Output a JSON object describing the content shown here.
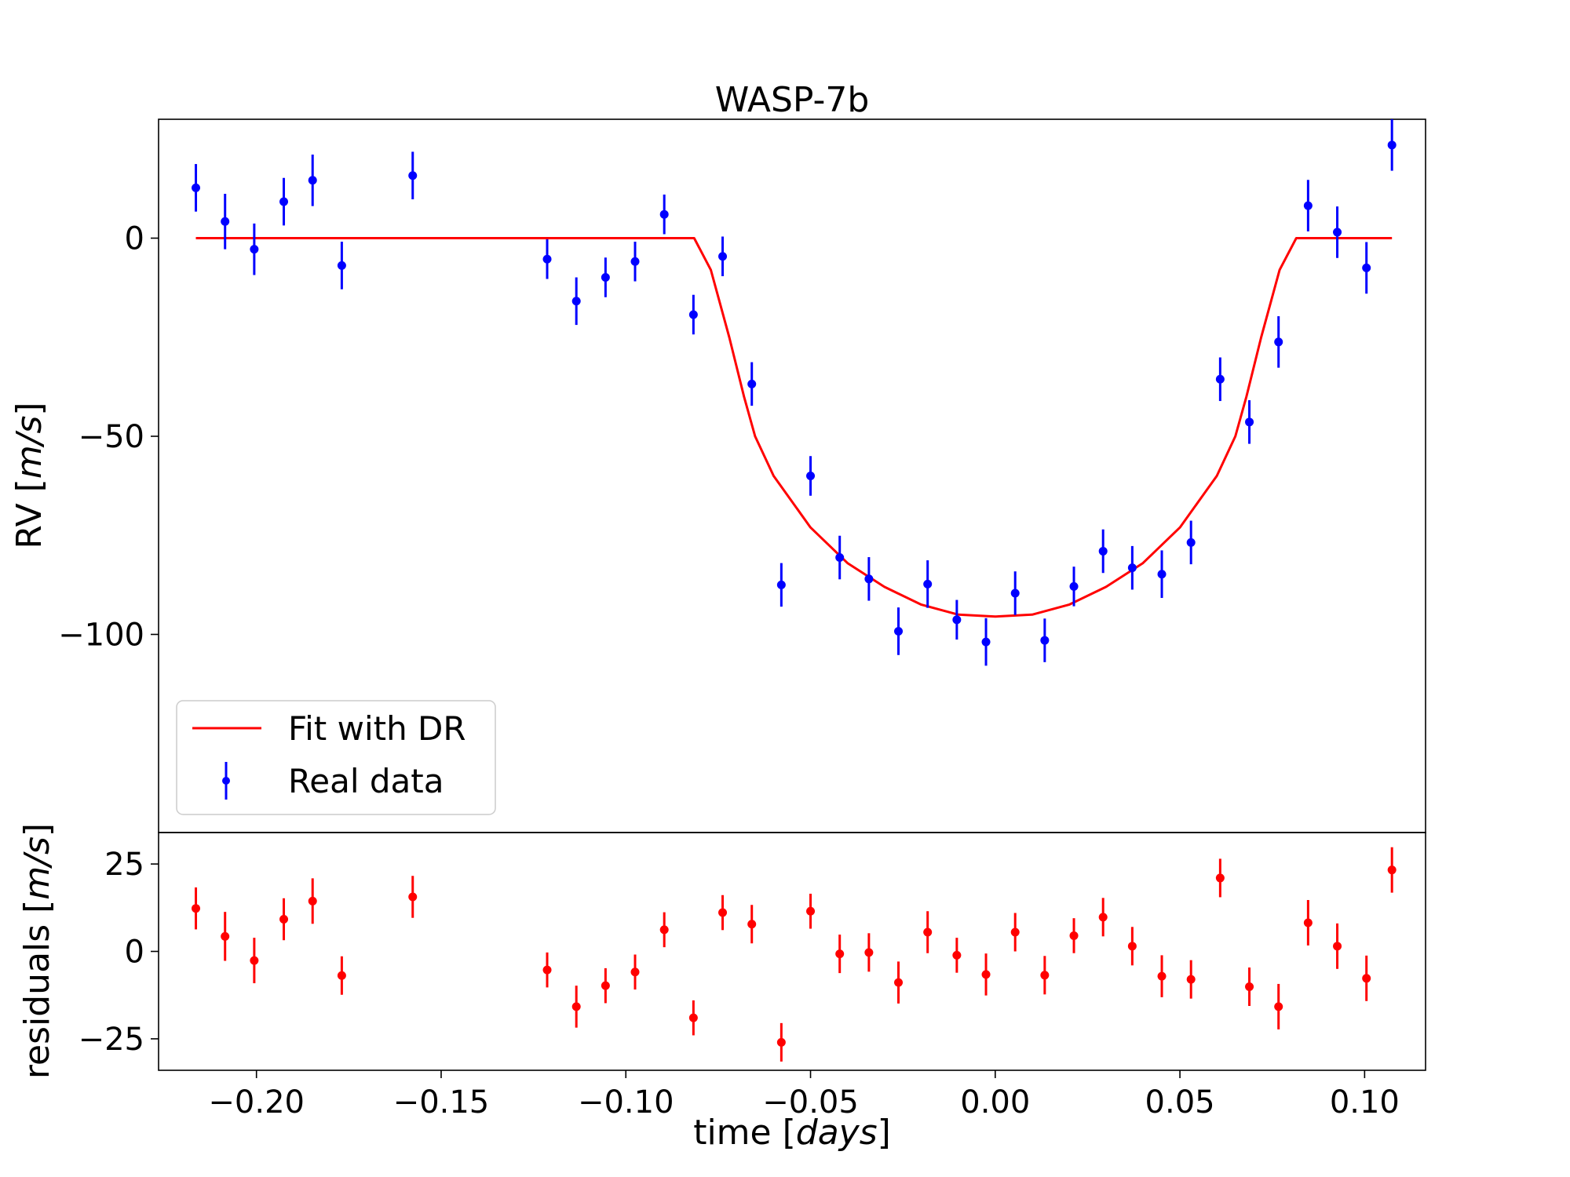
{
  "chart_data": {
    "type": "scatter",
    "title": "WASP-7b",
    "colors": {
      "fit": "#ff0000",
      "data": "#0000ff",
      "residuals": "#ff0000"
    },
    "top_panel": {
      "ylabel_text": "RV [",
      "ylabel_unit": "m/s",
      "ylabel_end": "]",
      "ylim": [
        -150,
        30
      ],
      "yticks": [
        0,
        -50,
        -100
      ],
      "ytick_labels": [
        "0",
        "−50",
        "−100"
      ],
      "legend": {
        "location": "lower-left",
        "fit_label": "Fit with DR",
        "data_label": "Real data"
      },
      "series": [
        {
          "name": "Fit with DR",
          "style": "line",
          "x": [
            -0.2164,
            -0.0815,
            -0.077,
            -0.072,
            -0.068,
            -0.065,
            -0.06,
            -0.05,
            -0.04,
            -0.03,
            -0.02,
            -0.01,
            0.0,
            0.01,
            0.02,
            0.03,
            0.04,
            0.05,
            0.06,
            0.065,
            0.068,
            0.072,
            0.077,
            0.0815,
            0.1074
          ],
          "y": [
            0,
            0,
            -8,
            -25,
            -40,
            -50,
            -60,
            -73,
            -82,
            -88,
            -92.5,
            -95,
            -95.5,
            -95,
            -92.5,
            -88,
            -82,
            -73,
            -60,
            -50,
            -40,
            -25,
            -8,
            0,
            0
          ]
        },
        {
          "name": "Real data",
          "style": "errorbar",
          "x": [
            -0.2164,
            -0.2085,
            -0.2006,
            -0.1926,
            -0.1848,
            -0.1769,
            -0.1577,
            -0.1213,
            -0.1134,
            -0.1055,
            -0.0975,
            -0.0896,
            -0.0817,
            -0.0738,
            -0.0659,
            -0.0579,
            -0.05,
            -0.0421,
            -0.0342,
            -0.0262,
            -0.0183,
            -0.0104,
            -0.0025,
            0.0054,
            0.0134,
            0.0213,
            0.0292,
            0.0371,
            0.0451,
            0.053,
            0.0609,
            0.0688,
            0.0767,
            0.0847,
            0.0926,
            0.1005,
            0.1074
          ],
          "y": [
            12.7,
            4.2,
            -2.8,
            9.2,
            14.6,
            -6.9,
            15.8,
            -5.3,
            -15.9,
            -9.9,
            -5.9,
            6.0,
            -19.3,
            -4.6,
            -36.8,
            -87.5,
            -60.0,
            -80.6,
            -86.0,
            -99.2,
            -87.3,
            -96.3,
            -101.9,
            -89.6,
            -101.5,
            -87.9,
            -79.0,
            -83.2,
            -84.8,
            -76.8,
            -35.6,
            -46.4,
            -26.2,
            8.2,
            1.5,
            -7.5,
            23.5
          ],
          "yerr": [
            6,
            7,
            6.5,
            6,
            6.5,
            6,
            6,
            5,
            6,
            5,
            5,
            5,
            5,
            5,
            5.5,
            5.5,
            5,
            5.5,
            5.5,
            6,
            6,
            5,
            6,
            5.5,
            5.5,
            5,
            5.5,
            5.5,
            6,
            5.5,
            5.5,
            5.5,
            6.5,
            6.5,
            6.5,
            6.5,
            6.5
          ]
        }
      ]
    },
    "bottom_panel": {
      "ylabel_text": "residuals [",
      "ylabel_unit": "m/s",
      "ylabel_end": "]",
      "ylim": [
        -34,
        34
      ],
      "yticks": [
        25,
        0,
        -25
      ],
      "ytick_labels": [
        "25",
        "0",
        "−25"
      ],
      "series": [
        {
          "name": "residuals",
          "style": "errorbar",
          "x": [
            -0.2164,
            -0.2085,
            -0.2006,
            -0.1926,
            -0.1848,
            -0.1769,
            -0.1577,
            -0.1213,
            -0.1134,
            -0.1055,
            -0.0975,
            -0.0896,
            -0.0817,
            -0.0738,
            -0.0659,
            -0.0579,
            -0.05,
            -0.0421,
            -0.0342,
            -0.0262,
            -0.0183,
            -0.0104,
            -0.0025,
            0.0054,
            0.0134,
            0.0213,
            0.0292,
            0.0371,
            0.0451,
            0.053,
            0.0609,
            0.0688,
            0.0767,
            0.0847,
            0.0926,
            0.1005,
            0.1074
          ],
          "y": [
            12.3,
            4.3,
            -2.6,
            9.2,
            14.4,
            -6.9,
            15.6,
            -5.3,
            -15.8,
            -9.8,
            -5.9,
            6.2,
            -19.0,
            11.1,
            7.8,
            -26.0,
            11.5,
            -0.7,
            -0.3,
            -8.9,
            5.5,
            -1.1,
            -6.6,
            5.5,
            -6.8,
            4.5,
            9.8,
            1.5,
            -7.1,
            -8.0,
            21.0,
            -10.1,
            -15.8,
            8.2,
            1.5,
            -7.7,
            23.3
          ],
          "yerr": [
            6,
            7,
            6.5,
            6,
            6.5,
            5.5,
            6,
            5,
            6,
            5,
            5,
            5,
            5,
            5,
            5.5,
            5.5,
            5,
            5.5,
            5.5,
            6,
            6,
            5,
            6,
            5.5,
            5.5,
            5,
            5.5,
            5.5,
            6,
            5.5,
            5.5,
            5.5,
            6.5,
            6.5,
            6.5,
            6.5,
            6.5
          ]
        }
      ]
    },
    "xaxis": {
      "xlabel_text": "time [",
      "xlabel_unit": "days",
      "xlabel_end": "]",
      "xlim": [
        -0.2265,
        0.1165
      ],
      "xticks": [
        -0.2,
        -0.15,
        -0.1,
        -0.05,
        0.0,
        0.05,
        0.1
      ],
      "xtick_labels": [
        "−0.20",
        "−0.15",
        "−0.10",
        "−0.05",
        "0.00",
        "0.05",
        "0.10"
      ]
    }
  }
}
